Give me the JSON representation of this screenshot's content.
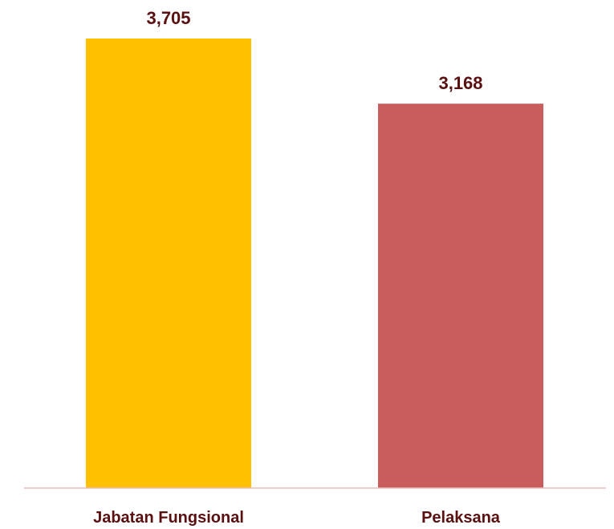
{
  "chart_data": {
    "type": "bar",
    "categories": [
      "Jabatan Fungsional",
      "Pelaksana"
    ],
    "values": [
      3705,
      3168
    ],
    "value_labels": [
      "3,705",
      "3,168"
    ],
    "title": "",
    "xlabel": "",
    "ylabel": "",
    "grid": false,
    "legend": "none",
    "colors": [
      "#FFC000",
      "#C95C5C"
    ],
    "axis_color": "#F2B8B8",
    "label_color": "#5A1010"
  }
}
